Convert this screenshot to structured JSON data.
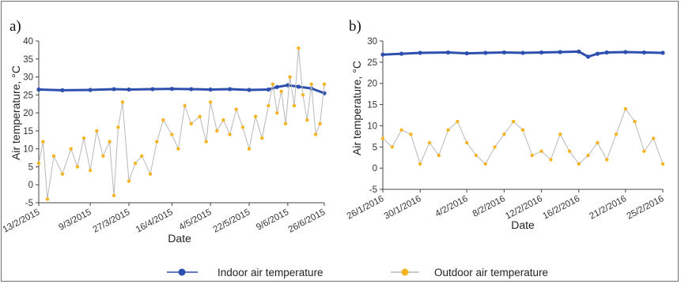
{
  "colors": {
    "indoor": "#2d4fad",
    "outdoor": "#f5b523",
    "outdoor_line": "#b8b8b8",
    "axis": "#444444"
  },
  "legend": {
    "indoor_label": "Indoor air temperature",
    "outdoor_label": "Outdoor air temperature"
  },
  "chart_data": [
    {
      "type": "line",
      "panel_label": "a)",
      "xlabel": "Date",
      "ylabel": "Air temperature, °C",
      "ylim": [
        -5,
        40
      ],
      "yticks": [
        -5,
        0,
        5,
        10,
        15,
        20,
        25,
        30,
        35,
        40
      ],
      "xlim": [
        "2015-02-13",
        "2015-06-26"
      ],
      "xtick_labels": [
        "13/2/2015",
        "9/3/2015",
        "27/3/2015",
        "16/4/2015",
        "4/5/2015",
        "22/5/2015",
        "9/6/2015",
        "26/6/2015"
      ],
      "xtick_dates": [
        "2015-02-13",
        "2015-03-09",
        "2015-03-27",
        "2015-04-16",
        "2015-05-04",
        "2015-05-22",
        "2015-06-09",
        "2015-06-26"
      ],
      "series": [
        {
          "name": "Indoor air temperature",
          "x": [
            "2015-02-13",
            "2015-02-24",
            "2015-03-09",
            "2015-03-20",
            "2015-03-27",
            "2015-04-07",
            "2015-04-16",
            "2015-04-25",
            "2015-05-04",
            "2015-05-13",
            "2015-05-22",
            "2015-05-31",
            "2015-06-04",
            "2015-06-09",
            "2015-06-14",
            "2015-06-20",
            "2015-06-26"
          ],
          "values": [
            26.5,
            26.3,
            26.4,
            26.6,
            26.5,
            26.6,
            26.7,
            26.6,
            26.5,
            26.6,
            26.4,
            26.5,
            27.2,
            27.7,
            27.3,
            26.8,
            25.5
          ]
        },
        {
          "name": "Outdoor air temperature",
          "x": [
            "2015-02-13",
            "2015-02-15",
            "2015-02-17",
            "2015-02-20",
            "2015-02-24",
            "2015-02-28",
            "2015-03-03",
            "2015-03-06",
            "2015-03-09",
            "2015-03-12",
            "2015-03-15",
            "2015-03-18",
            "2015-03-20",
            "2015-03-22",
            "2015-03-24",
            "2015-03-27",
            "2015-03-30",
            "2015-04-02",
            "2015-04-06",
            "2015-04-09",
            "2015-04-12",
            "2015-04-16",
            "2015-04-19",
            "2015-04-22",
            "2015-04-25",
            "2015-04-29",
            "2015-05-02",
            "2015-05-04",
            "2015-05-07",
            "2015-05-10",
            "2015-05-13",
            "2015-05-16",
            "2015-05-19",
            "2015-05-22",
            "2015-05-25",
            "2015-05-28",
            "2015-05-31",
            "2015-06-02",
            "2015-06-04",
            "2015-06-06",
            "2015-06-08",
            "2015-06-10",
            "2015-06-12",
            "2015-06-14",
            "2015-06-16",
            "2015-06-18",
            "2015-06-20",
            "2015-06-22",
            "2015-06-24",
            "2015-06-26"
          ],
          "values": [
            6,
            12,
            -4,
            8,
            3,
            10,
            5,
            13,
            4,
            15,
            8,
            12,
            -3,
            16,
            23,
            1,
            6,
            8,
            3,
            12,
            18,
            14,
            10,
            22,
            17,
            19,
            12,
            23,
            15,
            18,
            14,
            21,
            16,
            10,
            19,
            13,
            22,
            28,
            20,
            26,
            17,
            30,
            22,
            38,
            25,
            18,
            28,
            14,
            17,
            28
          ]
        }
      ]
    },
    {
      "type": "line",
      "panel_label": "b)",
      "xlabel": "Date",
      "ylabel": "Air temperature, °C",
      "ylim": [
        -5,
        30
      ],
      "yticks": [
        -5,
        0,
        5,
        10,
        15,
        20,
        25,
        30
      ],
      "xlim": [
        "2016-01-26",
        "2016-02-25"
      ],
      "xtick_labels": [
        "26/1/2016",
        "30/1/2016",
        "4/2/2016",
        "8/2/2016",
        "12/2/2016",
        "16/2/2016",
        "21/2/2016",
        "25/2/2016"
      ],
      "xtick_dates": [
        "2016-01-26",
        "2016-01-30",
        "2016-02-04",
        "2016-02-08",
        "2016-02-12",
        "2016-02-16",
        "2016-02-21",
        "2016-02-25"
      ],
      "series": [
        {
          "name": "Indoor air temperature",
          "x": [
            "2016-01-26",
            "2016-01-28",
            "2016-01-30",
            "2016-02-02",
            "2016-02-04",
            "2016-02-06",
            "2016-02-08",
            "2016-02-10",
            "2016-02-12",
            "2016-02-14",
            "2016-02-16",
            "2016-02-17",
            "2016-02-18",
            "2016-02-19",
            "2016-02-21",
            "2016-02-23",
            "2016-02-25"
          ],
          "values": [
            26.8,
            27.0,
            27.2,
            27.3,
            27.1,
            27.2,
            27.3,
            27.2,
            27.3,
            27.4,
            27.5,
            26.3,
            27.0,
            27.3,
            27.4,
            27.3,
            27.2
          ]
        },
        {
          "name": "Outdoor air temperature",
          "x": [
            "2016-01-26",
            "2016-01-27",
            "2016-01-28",
            "2016-01-29",
            "2016-01-30",
            "2016-01-31",
            "2016-02-01",
            "2016-02-02",
            "2016-02-03",
            "2016-02-04",
            "2016-02-05",
            "2016-02-06",
            "2016-02-07",
            "2016-02-08",
            "2016-02-09",
            "2016-02-10",
            "2016-02-11",
            "2016-02-12",
            "2016-02-13",
            "2016-02-14",
            "2016-02-15",
            "2016-02-16",
            "2016-02-17",
            "2016-02-18",
            "2016-02-19",
            "2016-02-20",
            "2016-02-21",
            "2016-02-22",
            "2016-02-23",
            "2016-02-24",
            "2016-02-25"
          ],
          "values": [
            7,
            5,
            9,
            8,
            1,
            6,
            3,
            9,
            11,
            6,
            3,
            1,
            5,
            8,
            11,
            9,
            3,
            4,
            2,
            8,
            4,
            1,
            3,
            6,
            2,
            8,
            14,
            11,
            4,
            7,
            1
          ]
        }
      ]
    }
  ]
}
